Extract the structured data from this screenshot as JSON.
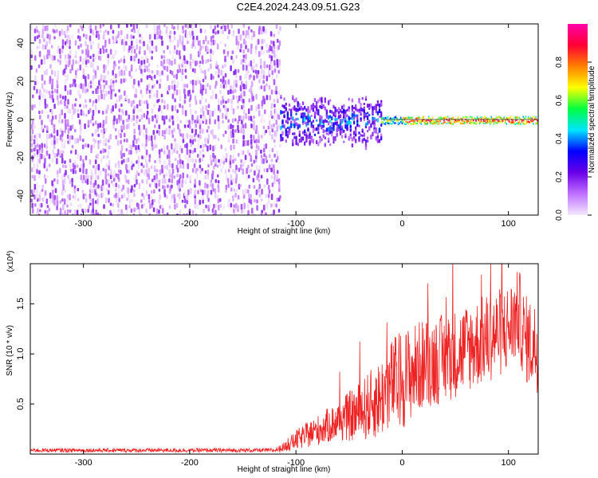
{
  "figure": {
    "title": "C2E4.2024.243.09.51.G23"
  },
  "chart_data": [
    {
      "type": "heatmap",
      "title": "C2E4.2024.243.09.51.G23",
      "xlabel": "Height of straight line (km)",
      "ylabel": "Frequency (Hz)",
      "xlim": [
        -350,
        128
      ],
      "ylim": [
        -50,
        50
      ],
      "xticks": [
        -300,
        -200,
        -100,
        0,
        100
      ],
      "yticks": [
        -40,
        -20,
        0,
        20,
        40
      ],
      "colorbar": {
        "label": "Normalized spectral amplitude",
        "range": [
          0,
          1
        ],
        "ticks": [
          "0.0",
          "0.2",
          "0.4",
          "0.6",
          "0.8"
        ],
        "colors": [
          "#f4e8ff",
          "#c070ff",
          "#6a00e8",
          "#0000ff",
          "#00e5ff",
          "#00ff40",
          "#ffff00",
          "#ff8000",
          "#ff0033",
          "#ff00aa"
        ]
      },
      "regions": [
        {
          "x_range": [
            -350,
            -115
          ],
          "freq_range": [
            -50,
            50
          ],
          "amplitude_range": [
            0.0,
            0.2
          ],
          "description_level": "noise"
        },
        {
          "x_range": [
            -115,
            -20
          ],
          "freq_center": 0,
          "freq_spread": 10,
          "amplitude_range": [
            0.1,
            0.5
          ]
        },
        {
          "x_range": [
            -20,
            128
          ],
          "freq_center": 0,
          "freq_spread": 2,
          "amplitude_range": [
            0.4,
            1.0
          ]
        }
      ],
      "grid": false
    },
    {
      "type": "line",
      "xlabel": "Height of straight line (km)",
      "ylabel": "SNR (10 * v/v)",
      "y_multiplier": "(x10^4)",
      "xlim": [
        -350,
        128
      ],
      "ylim": [
        0,
        1.9
      ],
      "xticks": [
        -300,
        -200,
        -100,
        0,
        100
      ],
      "yticks": [
        "0.5",
        "1.0",
        "1.5"
      ],
      "color": "#ee2222",
      "envelope_x": [
        -350,
        -120,
        -110,
        -100,
        -80,
        -60,
        -40,
        -20,
        -10,
        0,
        20,
        40,
        60,
        80,
        100,
        110,
        115,
        128
      ],
      "envelope_y": [
        0.04,
        0.04,
        0.08,
        0.15,
        0.25,
        0.35,
        0.45,
        0.6,
        0.75,
        0.8,
        0.95,
        1.0,
        1.1,
        1.2,
        1.3,
        1.45,
        1.2,
        1.1
      ],
      "noise_scale": [
        0.02,
        0.02,
        0.05,
        0.1,
        0.15,
        0.2,
        0.3,
        0.4,
        0.45,
        0.5,
        0.45,
        0.45,
        0.45,
        0.45,
        0.45,
        0.45,
        0.45,
        0.45
      ],
      "grid": false
    }
  ]
}
